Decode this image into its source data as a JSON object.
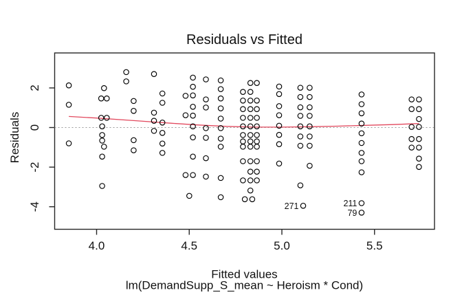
{
  "title": "Residuals vs Fitted",
  "x_axis": {
    "label": "Fitted values",
    "sub_label": "lm(DemandSupp_S_mean ~ Heroism * Cond)",
    "ticks": [
      4.0,
      4.5,
      5.0,
      5.5
    ],
    "tick_labels": [
      "4.0",
      "4.5",
      "5.0",
      "5.5"
    ]
  },
  "y_axis": {
    "label": "Residuals",
    "ticks": [
      2,
      0,
      -2,
      -4
    ],
    "tick_labels": [
      "2",
      "0",
      "-2",
      "-4"
    ]
  },
  "colors": {
    "smooth_line": "#e2495e",
    "zero_line": "#9a9a9a",
    "points": "#000000",
    "axis": "#262626"
  },
  "chart_data": {
    "type": "scatter",
    "title": "Residuals vs Fitted",
    "xlabel": "Fitted values",
    "xlabel2": "lm(DemandSupp_S_mean ~ Heroism * Cond)",
    "ylabel": "Residuals",
    "xlim": [
      3.77,
      5.82
    ],
    "ylim": [
      -5.1,
      3.8
    ],
    "grid": false,
    "marker": "open-circle",
    "points": [
      [
        3.85,
        2.13
      ],
      [
        3.85,
        1.15
      ],
      [
        3.85,
        -0.8
      ],
      [
        4.04,
        1.99
      ],
      [
        4.025,
        1.47
      ],
      [
        4.055,
        1.47
      ],
      [
        4.025,
        0.49
      ],
      [
        4.055,
        0.49
      ],
      [
        4.03,
        0.06
      ],
      [
        4.03,
        -0.38
      ],
      [
        4.03,
        -0.66
      ],
      [
        4.04,
        -0.97
      ],
      [
        4.03,
        -1.47
      ],
      [
        4.03,
        -2.95
      ],
      [
        4.16,
        2.8
      ],
      [
        4.16,
        2.33
      ],
      [
        4.2,
        1.34
      ],
      [
        4.2,
        0.84
      ],
      [
        4.2,
        -0.64
      ],
      [
        4.2,
        -1.15
      ],
      [
        4.31,
        2.7
      ],
      [
        4.31,
        0.75
      ],
      [
        4.31,
        0.34
      ],
      [
        4.31,
        -0.17
      ],
      [
        4.355,
        1.72
      ],
      [
        4.355,
        1.25
      ],
      [
        4.355,
        0.25
      ],
      [
        4.355,
        -0.27
      ],
      [
        4.355,
        -0.81
      ],
      [
        4.355,
        -1.28
      ],
      [
        4.52,
        2.52
      ],
      [
        4.52,
        2.06
      ],
      [
        4.48,
        1.6
      ],
      [
        4.52,
        1.62
      ],
      [
        4.52,
        1.05
      ],
      [
        4.48,
        0.62
      ],
      [
        4.52,
        0.6
      ],
      [
        4.52,
        0.06
      ],
      [
        4.52,
        -0.5
      ],
      [
        4.52,
        -1.47
      ],
      [
        4.48,
        -2.4
      ],
      [
        4.52,
        -2.4
      ],
      [
        4.5,
        -3.45
      ],
      [
        4.59,
        2.43
      ],
      [
        4.59,
        1.42
      ],
      [
        4.59,
        1.01
      ],
      [
        4.59,
        -0.03
      ],
      [
        4.59,
        -0.52
      ],
      [
        4.59,
        -1.55
      ],
      [
        4.59,
        -2.48
      ],
      [
        4.67,
        2.38
      ],
      [
        4.67,
        1.94
      ],
      [
        4.67,
        1.47
      ],
      [
        4.67,
        0.97
      ],
      [
        4.67,
        0.45
      ],
      [
        4.67,
        -0.03
      ],
      [
        4.67,
        -0.56
      ],
      [
        4.67,
        -0.97
      ],
      [
        4.67,
        -2.55
      ],
      [
        4.67,
        -3.52
      ],
      [
        4.83,
        2.25
      ],
      [
        4.865,
        2.25
      ],
      [
        4.79,
        1.8
      ],
      [
        4.83,
        1.8
      ],
      [
        4.79,
        1.36
      ],
      [
        4.83,
        1.36
      ],
      [
        4.865,
        1.36
      ],
      [
        4.79,
        0.93
      ],
      [
        4.83,
        0.93
      ],
      [
        4.865,
        0.93
      ],
      [
        4.79,
        0.49
      ],
      [
        4.83,
        0.49
      ],
      [
        4.865,
        0.49
      ],
      [
        4.79,
        0.06
      ],
      [
        4.83,
        0.06
      ],
      [
        4.865,
        0.06
      ],
      [
        4.79,
        -0.38
      ],
      [
        4.83,
        -0.38
      ],
      [
        4.865,
        -0.38
      ],
      [
        4.79,
        -0.7
      ],
      [
        4.83,
        -0.7
      ],
      [
        4.865,
        -0.7
      ],
      [
        4.79,
        -0.97
      ],
      [
        4.83,
        -0.97
      ],
      [
        4.865,
        -0.97
      ],
      [
        4.79,
        -1.7
      ],
      [
        4.83,
        -1.7
      ],
      [
        4.865,
        -1.7
      ],
      [
        4.83,
        -2.23
      ],
      [
        4.865,
        -2.23
      ],
      [
        4.79,
        -2.67
      ],
      [
        4.83,
        -2.67
      ],
      [
        4.865,
        -2.67
      ],
      [
        4.83,
        -3.18
      ],
      [
        4.8,
        -3.62
      ],
      [
        4.84,
        -3.62
      ],
      [
        4.985,
        2.07
      ],
      [
        4.985,
        1.69
      ],
      [
        4.985,
        1.08
      ],
      [
        4.985,
        0.62
      ],
      [
        4.985,
        0.09
      ],
      [
        4.985,
        -0.37
      ],
      [
        4.985,
        -0.84
      ],
      [
        4.985,
        -1.82
      ],
      [
        5.1,
        2.01
      ],
      [
        5.15,
        2.01
      ],
      [
        5.1,
        1.54
      ],
      [
        5.15,
        1.54
      ],
      [
        5.1,
        1.02
      ],
      [
        5.15,
        1.02
      ],
      [
        5.1,
        0.59
      ],
      [
        5.15,
        0.59
      ],
      [
        5.1,
        0.06
      ],
      [
        5.15,
        0.06
      ],
      [
        5.1,
        -0.45
      ],
      [
        5.15,
        -0.45
      ],
      [
        5.1,
        -0.92
      ],
      [
        5.15,
        -0.92
      ],
      [
        5.15,
        -1.93
      ],
      [
        5.1,
        -2.92
      ],
      [
        5.43,
        1.67
      ],
      [
        5.43,
        1.18
      ],
      [
        5.43,
        0.72
      ],
      [
        5.43,
        0.2
      ],
      [
        5.43,
        -0.29
      ],
      [
        5.43,
        -0.78
      ],
      [
        5.43,
        -1.28
      ],
      [
        5.43,
        -1.7
      ],
      [
        5.43,
        -2.26
      ],
      [
        5.7,
        1.42
      ],
      [
        5.74,
        1.42
      ],
      [
        5.7,
        0.93
      ],
      [
        5.74,
        0.93
      ],
      [
        5.74,
        0.43
      ],
      [
        5.7,
        0.03
      ],
      [
        5.74,
        0.03
      ],
      [
        5.7,
        -0.58
      ],
      [
        5.74,
        -0.58
      ],
      [
        5.7,
        -1.01
      ],
      [
        5.74,
        -1.01
      ],
      [
        5.74,
        -1.57
      ],
      [
        5.74,
        -1.99
      ]
    ],
    "labeled_points": [
      {
        "label": "271",
        "x": 5.115,
        "y": -3.95
      },
      {
        "label": "211",
        "x": 5.43,
        "y": -3.82
      },
      {
        "label": "79",
        "x": 5.43,
        "y": -4.3
      }
    ],
    "smooth_line": {
      "color": "#e2495e",
      "points": [
        [
          3.85,
          0.56
        ],
        [
          4.0,
          0.48
        ],
        [
          4.2,
          0.35
        ],
        [
          4.4,
          0.22
        ],
        [
          4.55,
          0.13
        ],
        [
          4.7,
          0.06
        ],
        [
          4.85,
          0.02
        ],
        [
          5.0,
          0.02
        ],
        [
          5.15,
          0.04
        ],
        [
          5.3,
          0.07
        ],
        [
          5.45,
          0.11
        ],
        [
          5.6,
          0.15
        ],
        [
          5.74,
          0.2
        ]
      ]
    },
    "zero_line": {
      "y": 0,
      "style": "dotted",
      "color": "#9a9a9a"
    },
    "legend": null
  }
}
